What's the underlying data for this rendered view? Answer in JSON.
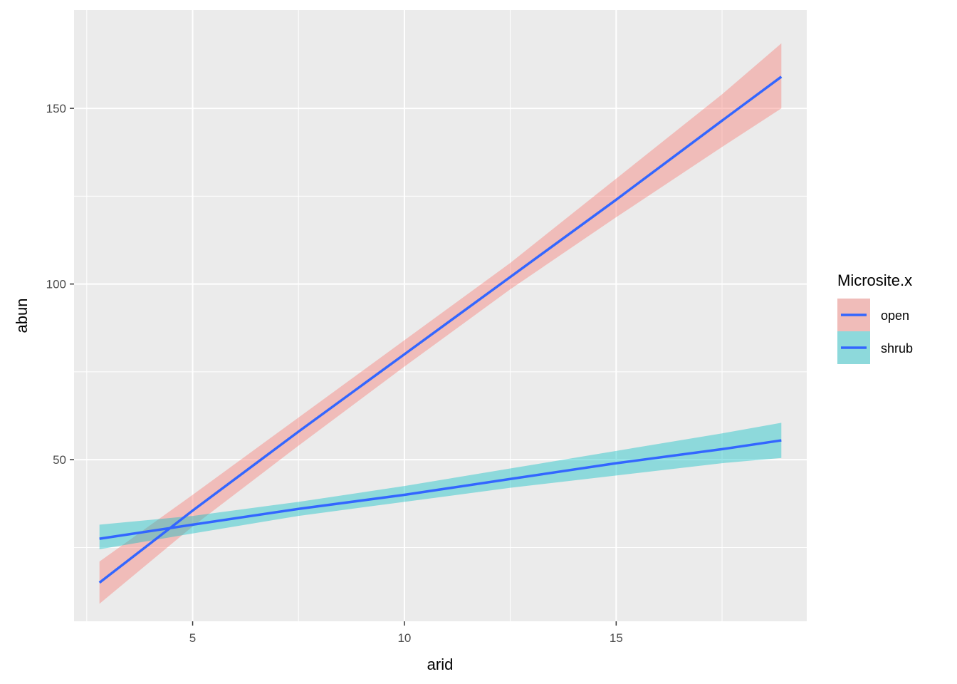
{
  "chart_data": {
    "type": "line",
    "title": "",
    "xlabel": "arid",
    "ylabel": "abun",
    "xlim": [
      2.2,
      19.5
    ],
    "ylim": [
      4,
      178
    ],
    "x_ticks_major": [
      5,
      10,
      15
    ],
    "x_ticks_minor": [
      2.5,
      7.5,
      12.5,
      17.5
    ],
    "y_ticks_major": [
      50,
      100,
      150
    ],
    "y_ticks_minor": [
      25,
      75,
      125
    ],
    "grid": true,
    "legend": {
      "title": "Microsite.x",
      "position": "right"
    },
    "line_color": "#3366ff",
    "series": [
      {
        "name": "open",
        "fill_color": "#f8766d",
        "x": [
          2.8,
          5.0,
          7.5,
          10.0,
          12.5,
          15.0,
          17.5,
          18.9
        ],
        "y": [
          15.0,
          35.5,
          58.0,
          80.0,
          102.0,
          124.0,
          146.5,
          159.0
        ],
        "lower": [
          9.0,
          31.0,
          54.0,
          76.5,
          98.5,
          119.0,
          139.0,
          150.0
        ],
        "upper": [
          21.0,
          40.0,
          62.0,
          84.0,
          106.0,
          130.0,
          154.0,
          168.5
        ]
      },
      {
        "name": "shrub",
        "fill_color": "#00bfc4",
        "x": [
          2.8,
          5.0,
          7.5,
          10.0,
          12.5,
          15.0,
          17.5,
          18.9
        ],
        "y": [
          27.5,
          31.5,
          36.0,
          40.0,
          44.5,
          49.0,
          53.0,
          55.5
        ],
        "lower": [
          24.5,
          29.0,
          34.0,
          38.0,
          42.0,
          45.5,
          49.0,
          50.5
        ],
        "upper": [
          31.5,
          34.0,
          38.0,
          42.5,
          47.5,
          52.5,
          57.5,
          60.5
        ]
      }
    ]
  }
}
